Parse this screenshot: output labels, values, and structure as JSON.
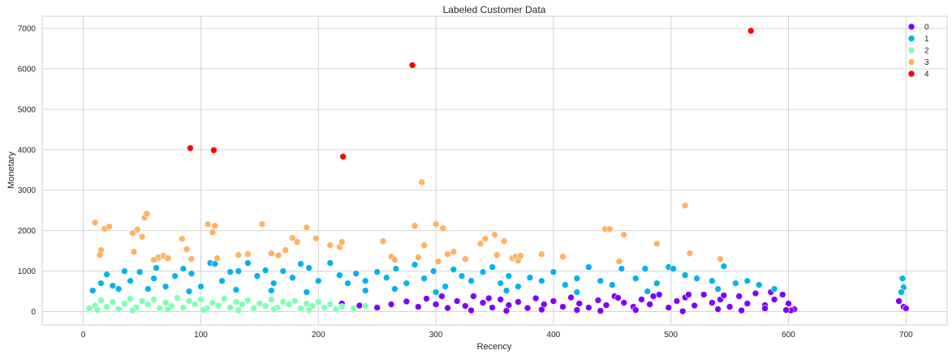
{
  "chart_data": {
    "type": "scatter",
    "title": "Labeled Customer Data",
    "xlabel": "Recency",
    "ylabel": "Monetary",
    "xlim": [
      -35,
      735
    ],
    "ylim": [
      -330,
      7300
    ],
    "xticks": [
      0,
      100,
      200,
      300,
      400,
      500,
      600,
      700
    ],
    "yticks": [
      0,
      1000,
      2000,
      3000,
      4000,
      5000,
      6000,
      7000
    ],
    "grid": true,
    "legend_position": "top-right",
    "series": [
      {
        "name": "0",
        "color": "#8000ff",
        "points": [
          [
            220,
            200
          ],
          [
            235,
            150
          ],
          [
            250,
            100
          ],
          [
            262,
            180
          ],
          [
            275,
            250
          ],
          [
            285,
            120
          ],
          [
            292,
            320
          ],
          [
            300,
            180
          ],
          [
            310,
            90
          ],
          [
            318,
            260
          ],
          [
            325,
            140
          ],
          [
            332,
            380
          ],
          [
            340,
            220
          ],
          [
            348,
            100
          ],
          [
            355,
            300
          ],
          [
            362,
            160
          ],
          [
            370,
            240
          ],
          [
            378,
            90
          ],
          [
            385,
            330
          ],
          [
            392,
            180
          ],
          [
            400,
            260
          ],
          [
            408,
            120
          ],
          [
            415,
            350
          ],
          [
            422,
            200
          ],
          [
            430,
            100
          ],
          [
            438,
            280
          ],
          [
            445,
            160
          ],
          [
            452,
            380
          ],
          [
            460,
            220
          ],
          [
            468,
            120
          ],
          [
            475,
            300
          ],
          [
            482,
            180
          ],
          [
            490,
            420
          ],
          [
            498,
            100
          ],
          [
            505,
            260
          ],
          [
            512,
            350
          ],
          [
            520,
            150
          ],
          [
            528,
            420
          ],
          [
            535,
            220
          ],
          [
            542,
            300
          ],
          [
            550,
            120
          ],
          [
            558,
            380
          ],
          [
            565,
            200
          ],
          [
            572,
            450
          ],
          [
            580,
            160
          ],
          [
            588,
            300
          ],
          [
            595,
            420
          ],
          [
            600,
            200
          ],
          [
            605,
            60
          ],
          [
            602,
            30
          ],
          [
            698,
            120
          ],
          [
            700,
            80
          ],
          [
            694,
            260
          ],
          [
            440,
            20
          ],
          [
            470,
            40
          ],
          [
            510,
            10
          ],
          [
            540,
            60
          ],
          [
            560,
            30
          ],
          [
            580,
            80
          ],
          [
            598,
            40
          ],
          [
            330,
            30
          ],
          [
            360,
            20
          ],
          [
            390,
            50
          ],
          [
            420,
            40
          ],
          [
            455,
            340
          ],
          [
            485,
            380
          ],
          [
            515,
            420
          ],
          [
            545,
            400
          ],
          [
            585,
            480
          ],
          [
            305,
            380
          ],
          [
            345,
            330
          ]
        ]
      },
      {
        "name": "1",
        "color": "#00b5eb",
        "points": [
          [
            8,
            520
          ],
          [
            15,
            700
          ],
          [
            20,
            920
          ],
          [
            25,
            640
          ],
          [
            35,
            1000
          ],
          [
            40,
            760
          ],
          [
            48,
            980
          ],
          [
            55,
            560
          ],
          [
            62,
            1080
          ],
          [
            70,
            620
          ],
          [
            78,
            880
          ],
          [
            85,
            1060
          ],
          [
            92,
            940
          ],
          [
            100,
            620
          ],
          [
            108,
            1200
          ],
          [
            112,
            1180
          ],
          [
            118,
            760
          ],
          [
            125,
            980
          ],
          [
            132,
            1000
          ],
          [
            140,
            1200
          ],
          [
            148,
            880
          ],
          [
            155,
            1020
          ],
          [
            162,
            700
          ],
          [
            170,
            1000
          ],
          [
            178,
            840
          ],
          [
            185,
            1180
          ],
          [
            192,
            1080
          ],
          [
            200,
            760
          ],
          [
            210,
            1200
          ],
          [
            218,
            900
          ],
          [
            225,
            700
          ],
          [
            232,
            940
          ],
          [
            240,
            760
          ],
          [
            250,
            980
          ],
          [
            258,
            840
          ],
          [
            266,
            1060
          ],
          [
            275,
            700
          ],
          [
            282,
            1160
          ],
          [
            290,
            820
          ],
          [
            298,
            1000
          ],
          [
            308,
            620
          ],
          [
            315,
            1040
          ],
          [
            322,
            880
          ],
          [
            330,
            760
          ],
          [
            340,
            980
          ],
          [
            348,
            1100
          ],
          [
            355,
            700
          ],
          [
            362,
            880
          ],
          [
            370,
            620
          ],
          [
            380,
            840
          ],
          [
            390,
            760
          ],
          [
            400,
            980
          ],
          [
            410,
            660
          ],
          [
            420,
            820
          ],
          [
            430,
            1100
          ],
          [
            440,
            760
          ],
          [
            450,
            660
          ],
          [
            458,
            1060
          ],
          [
            470,
            820
          ],
          [
            478,
            1060
          ],
          [
            488,
            700
          ],
          [
            498,
            1100
          ],
          [
            502,
            1060
          ],
          [
            512,
            900
          ],
          [
            522,
            820
          ],
          [
            535,
            760
          ],
          [
            545,
            1120
          ],
          [
            555,
            700
          ],
          [
            565,
            760
          ],
          [
            575,
            660
          ],
          [
            588,
            560
          ],
          [
            697,
            820
          ],
          [
            698,
            600
          ],
          [
            696,
            480
          ],
          [
            30,
            560
          ],
          [
            60,
            820
          ],
          [
            90,
            500
          ],
          [
            130,
            540
          ],
          [
            160,
            520
          ],
          [
            190,
            480
          ],
          [
            240,
            520
          ],
          [
            265,
            560
          ],
          [
            300,
            480
          ],
          [
            360,
            520
          ],
          [
            420,
            480
          ],
          [
            480,
            500
          ],
          [
            540,
            560
          ]
        ]
      },
      {
        "name": "2",
        "color": "#80ffb4",
        "points": [
          [
            5,
            80
          ],
          [
            10,
            150
          ],
          [
            15,
            280
          ],
          [
            20,
            120
          ],
          [
            25,
            240
          ],
          [
            30,
            60
          ],
          [
            35,
            200
          ],
          [
            40,
            320
          ],
          [
            45,
            100
          ],
          [
            50,
            260
          ],
          [
            55,
            180
          ],
          [
            60,
            300
          ],
          [
            65,
            80
          ],
          [
            70,
            220
          ],
          [
            75,
            140
          ],
          [
            80,
            340
          ],
          [
            85,
            100
          ],
          [
            90,
            260
          ],
          [
            95,
            180
          ],
          [
            100,
            300
          ],
          [
            105,
            80
          ],
          [
            110,
            220
          ],
          [
            115,
            150
          ],
          [
            120,
            320
          ],
          [
            125,
            100
          ],
          [
            130,
            240
          ],
          [
            135,
            180
          ],
          [
            140,
            280
          ],
          [
            145,
            80
          ],
          [
            150,
            200
          ],
          [
            155,
            140
          ],
          [
            160,
            300
          ],
          [
            165,
            100
          ],
          [
            170,
            240
          ],
          [
            175,
            180
          ],
          [
            180,
            260
          ],
          [
            185,
            80
          ],
          [
            190,
            200
          ],
          [
            195,
            140
          ],
          [
            200,
            240
          ],
          [
            205,
            100
          ],
          [
            210,
            180
          ],
          [
            215,
            60
          ],
          [
            220,
            120
          ],
          [
            230,
            80
          ],
          [
            240,
            140
          ],
          [
            12,
            40
          ],
          [
            42,
            30
          ],
          [
            72,
            50
          ],
          [
            102,
            40
          ],
          [
            132,
            30
          ],
          [
            162,
            60
          ],
          [
            192,
            40
          ]
        ]
      },
      {
        "name": "3",
        "color": "#ffb360",
        "points": [
          [
            10,
            2200
          ],
          [
            15,
            1520
          ],
          [
            18,
            2050
          ],
          [
            22,
            2100
          ],
          [
            14,
            1400
          ],
          [
            42,
            1940
          ],
          [
            46,
            2030
          ],
          [
            50,
            1850
          ],
          [
            52,
            2320
          ],
          [
            54,
            2420
          ],
          [
            43,
            1480
          ],
          [
            64,
            1340
          ],
          [
            68,
            1380
          ],
          [
            60,
            1280
          ],
          [
            72,
            1320
          ],
          [
            84,
            1800
          ],
          [
            88,
            1540
          ],
          [
            92,
            1300
          ],
          [
            106,
            2160
          ],
          [
            110,
            1960
          ],
          [
            112,
            2120
          ],
          [
            114,
            1320
          ],
          [
            132,
            1400
          ],
          [
            140,
            1420
          ],
          [
            152,
            2160
          ],
          [
            160,
            1440
          ],
          [
            166,
            1390
          ],
          [
            172,
            1520
          ],
          [
            178,
            1820
          ],
          [
            182,
            1720
          ],
          [
            190,
            2080
          ],
          [
            198,
            1810
          ],
          [
            210,
            1640
          ],
          [
            218,
            1600
          ],
          [
            220,
            1720
          ],
          [
            255,
            1740
          ],
          [
            262,
            1360
          ],
          [
            265,
            1280
          ],
          [
            282,
            2120
          ],
          [
            285,
            1340
          ],
          [
            288,
            3200
          ],
          [
            290,
            1640
          ],
          [
            300,
            2160
          ],
          [
            302,
            1240
          ],
          [
            306,
            2060
          ],
          [
            310,
            1420
          ],
          [
            315,
            1480
          ],
          [
            325,
            1300
          ],
          [
            338,
            1680
          ],
          [
            342,
            1800
          ],
          [
            350,
            1900
          ],
          [
            352,
            1400
          ],
          [
            358,
            1740
          ],
          [
            365,
            1320
          ],
          [
            368,
            1360
          ],
          [
            370,
            1260
          ],
          [
            372,
            1380
          ],
          [
            390,
            1420
          ],
          [
            408,
            1360
          ],
          [
            444,
            2040
          ],
          [
            448,
            2040
          ],
          [
            456,
            1240
          ],
          [
            460,
            1900
          ],
          [
            488,
            1680
          ],
          [
            512,
            2620
          ],
          [
            516,
            1440
          ],
          [
            542,
            1300
          ]
        ]
      },
      {
        "name": "4",
        "color": "#ff0000",
        "points": [
          [
            91,
            4040
          ],
          [
            111,
            3990
          ],
          [
            221,
            3830
          ],
          [
            280,
            6090
          ],
          [
            568,
            6940
          ]
        ]
      }
    ]
  }
}
